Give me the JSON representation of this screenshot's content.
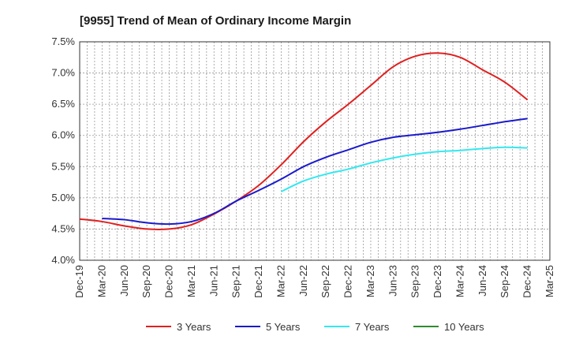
{
  "chart_data": {
    "type": "line",
    "title": "[9955]  Trend of Mean of Ordinary Income Margin",
    "xlabel": "",
    "ylabel": "",
    "ylim": [
      4.0,
      7.5
    ],
    "y_ticks": [
      "4.0%",
      "4.5%",
      "5.0%",
      "5.5%",
      "6.0%",
      "6.5%",
      "7.0%",
      "7.5%"
    ],
    "y_tick_values": [
      4.0,
      4.5,
      5.0,
      5.5,
      6.0,
      6.5,
      7.0,
      7.5
    ],
    "categories": [
      "Dec-19",
      "Mar-20",
      "Jun-20",
      "Sep-20",
      "Dec-20",
      "Mar-21",
      "Jun-21",
      "Sep-21",
      "Dec-21",
      "Mar-22",
      "Jun-22",
      "Sep-22",
      "Dec-22",
      "Mar-23",
      "Jun-23",
      "Sep-23",
      "Dec-23",
      "Mar-24",
      "Jun-24",
      "Sep-24",
      "Dec-24",
      "Mar-25"
    ],
    "grid": true,
    "legend_position": "bottom",
    "series": [
      {
        "name": "3 Years",
        "color": "#e02020",
        "values": [
          4.66,
          4.62,
          4.55,
          4.5,
          4.5,
          4.57,
          4.74,
          4.95,
          5.2,
          5.53,
          5.9,
          6.22,
          6.5,
          6.8,
          7.1,
          7.27,
          7.32,
          7.25,
          7.05,
          6.85,
          6.57,
          null
        ]
      },
      {
        "name": "5 Years",
        "color": "#1a1acc",
        "values": [
          null,
          4.67,
          4.65,
          4.6,
          4.58,
          4.62,
          4.75,
          4.95,
          5.12,
          5.3,
          5.5,
          5.65,
          5.77,
          5.89,
          5.97,
          6.01,
          6.05,
          6.1,
          6.16,
          6.22,
          6.27,
          null
        ]
      },
      {
        "name": "7 Years",
        "color": "#33e8f0",
        "values": [
          null,
          null,
          null,
          null,
          null,
          null,
          null,
          null,
          null,
          5.1,
          5.27,
          5.38,
          5.46,
          5.56,
          5.64,
          5.7,
          5.74,
          5.76,
          5.79,
          5.81,
          5.8,
          null
        ]
      },
      {
        "name": "10 Years",
        "color": "#2e8b2e",
        "values": [
          null,
          null,
          null,
          null,
          null,
          null,
          null,
          null,
          null,
          null,
          null,
          null,
          null,
          null,
          null,
          null,
          null,
          null,
          null,
          null,
          null,
          null
        ]
      }
    ]
  }
}
